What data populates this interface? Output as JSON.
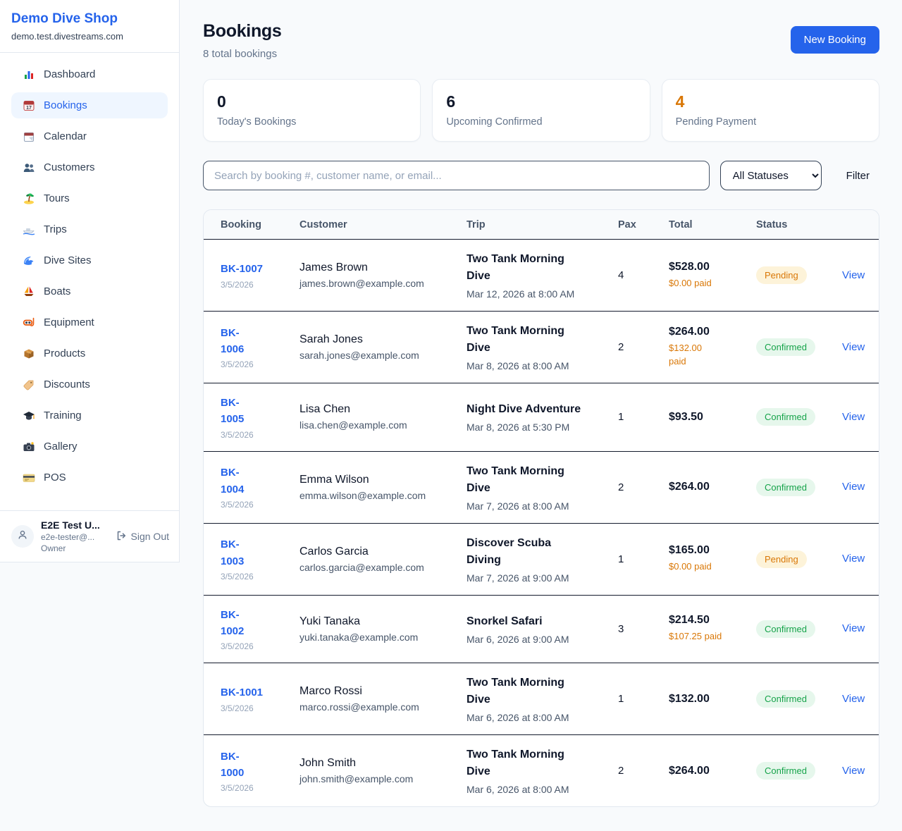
{
  "sidebar": {
    "brand": "Demo Dive Shop",
    "domain": "demo.test.divestreams.com",
    "items": [
      {
        "label": "Dashboard",
        "icon": "bar-chart",
        "active": false
      },
      {
        "label": "Bookings",
        "icon": "calendar-date",
        "active": true
      },
      {
        "label": "Calendar",
        "icon": "calendar-pad",
        "active": false
      },
      {
        "label": "Customers",
        "icon": "users",
        "active": false
      },
      {
        "label": "Tours",
        "icon": "island",
        "active": false
      },
      {
        "label": "Trips",
        "icon": "speedboat",
        "active": false
      },
      {
        "label": "Dive Sites",
        "icon": "wave",
        "active": false
      },
      {
        "label": "Boats",
        "icon": "sailboat",
        "active": false
      },
      {
        "label": "Equipment",
        "icon": "dive-mask",
        "active": false
      },
      {
        "label": "Products",
        "icon": "package",
        "active": false
      },
      {
        "label": "Discounts",
        "icon": "tag",
        "active": false
      },
      {
        "label": "Training",
        "icon": "grad-cap",
        "active": false
      },
      {
        "label": "Gallery",
        "icon": "camera",
        "active": false
      },
      {
        "label": "POS",
        "icon": "credit-card",
        "active": false
      }
    ],
    "user": {
      "name": "E2E Test U...",
      "email": "e2e-tester@...",
      "role": "Owner",
      "signout_label": "Sign Out"
    }
  },
  "header": {
    "title": "Bookings",
    "subtitle": "8 total bookings",
    "new_booking_label": "New Booking"
  },
  "stats": [
    {
      "value": "0",
      "label": "Today's Bookings",
      "color": "#0f172a"
    },
    {
      "value": "6",
      "label": "Upcoming Confirmed",
      "color": "#0f172a"
    },
    {
      "value": "4",
      "label": "Pending Payment",
      "color": "#d97706"
    }
  ],
  "controls": {
    "search_placeholder": "Search by booking #, customer name, or email...",
    "status_filter_value": "All Statuses",
    "filter_label": "Filter"
  },
  "table": {
    "columns": [
      "Booking",
      "Customer",
      "Trip",
      "Pax",
      "Total",
      "Status"
    ],
    "view_label": "View",
    "status_styles": {
      "Pending": {
        "bg": "#fdf3d9",
        "color": "#d97706"
      },
      "Confirmed": {
        "bg": "#e6f7ec",
        "color": "#16a34a"
      }
    },
    "rows": [
      {
        "id": "BK-1007",
        "id_wrap": false,
        "date": "3/5/2026",
        "customer": "James Brown",
        "email": "james.brown@example.com",
        "trip": "Two Tank Morning\nDive",
        "trip_date": "Mar 12, 2026 at 8:00 AM",
        "pax": "4",
        "total": "$528.00",
        "paid": "$0.00 paid",
        "status": "Pending"
      },
      {
        "id": "BK-1006",
        "id_wrap": true,
        "date": "3/5/2026",
        "customer": "Sarah Jones",
        "email": "sarah.jones@example.com",
        "trip": "Two Tank Morning\nDive",
        "trip_date": "Mar 8, 2026 at 8:00 AM",
        "pax": "2",
        "total": "$264.00",
        "paid": "$132.00\npaid",
        "status": "Confirmed"
      },
      {
        "id": "BK-1005",
        "id_wrap": true,
        "date": "3/5/2026",
        "customer": "Lisa Chen",
        "email": "lisa.chen@example.com",
        "trip": "Night Dive Adventure",
        "trip_date": "Mar 8, 2026 at 5:30 PM",
        "pax": "1",
        "total": "$93.50",
        "paid": null,
        "status": "Confirmed"
      },
      {
        "id": "BK-1004",
        "id_wrap": true,
        "date": "3/5/2026",
        "customer": "Emma Wilson",
        "email": "emma.wilson@example.com",
        "trip": "Two Tank Morning\nDive",
        "trip_date": "Mar 7, 2026 at 8:00 AM",
        "pax": "2",
        "total": "$264.00",
        "paid": null,
        "status": "Confirmed"
      },
      {
        "id": "BK-1003",
        "id_wrap": true,
        "date": "3/5/2026",
        "customer": "Carlos Garcia",
        "email": "carlos.garcia@example.com",
        "trip": "Discover Scuba\nDiving",
        "trip_date": "Mar 7, 2026 at 9:00 AM",
        "pax": "1",
        "total": "$165.00",
        "paid": "$0.00 paid",
        "status": "Pending"
      },
      {
        "id": "BK-1002",
        "id_wrap": true,
        "date": "3/5/2026",
        "customer": "Yuki Tanaka",
        "email": "yuki.tanaka@example.com",
        "trip": "Snorkel Safari",
        "trip_date": "Mar 6, 2026 at 9:00 AM",
        "pax": "3",
        "total": "$214.50",
        "paid": "$107.25 paid",
        "status": "Confirmed"
      },
      {
        "id": "BK-1001",
        "id_wrap": false,
        "date": "3/5/2026",
        "customer": "Marco Rossi",
        "email": "marco.rossi@example.com",
        "trip": "Two Tank Morning\nDive",
        "trip_date": "Mar 6, 2026 at 8:00 AM",
        "pax": "1",
        "total": "$132.00",
        "paid": null,
        "status": "Confirmed"
      },
      {
        "id": "BK-1000",
        "id_wrap": true,
        "date": "3/5/2026",
        "customer": "John Smith",
        "email": "john.smith@example.com",
        "trip": "Two Tank Morning\nDive",
        "trip_date": "Mar 6, 2026 at 8:00 AM",
        "pax": "2",
        "total": "$264.00",
        "paid": null,
        "status": "Confirmed"
      }
    ]
  },
  "colors": {
    "accent": "#2563eb",
    "pending": "#d97706",
    "confirmed": "#16a34a",
    "page_bg": "#f8fafc"
  }
}
